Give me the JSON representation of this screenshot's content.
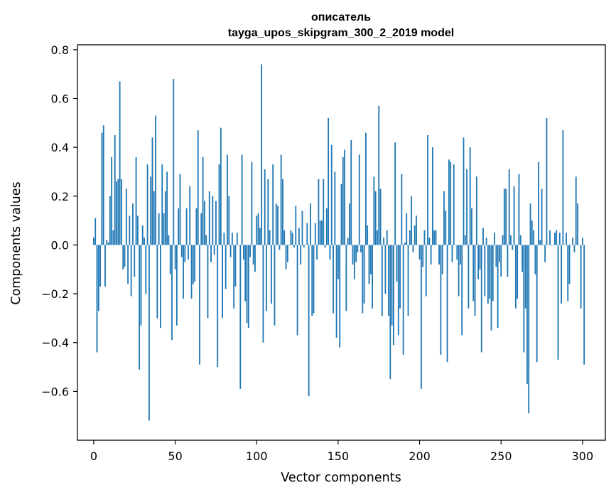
{
  "chart_data": {
    "type": "bar",
    "title_line1": "описатель",
    "title_line2": "tayga_upos_skipgram_300_2_2019 model",
    "xlabel": "Vector components",
    "ylabel": "Components values",
    "xlim": [
      -10,
      314
    ],
    "ylim": [
      -0.8,
      0.82
    ],
    "x_ticks": [
      0,
      50,
      100,
      150,
      200,
      250,
      300
    ],
    "y_ticks": [
      -0.6,
      -0.4,
      -0.2,
      0.0,
      0.2,
      0.4,
      0.6,
      0.8
    ],
    "y_tick_labels": [
      "−0.6",
      "−0.4",
      "−0.2",
      "0.0",
      "0.2",
      "0.4",
      "0.6",
      "0.8"
    ],
    "bar_color": "#1f77b4",
    "values": [
      0.03,
      0.11,
      -0.44,
      -0.27,
      -0.17,
      0.46,
      0.49,
      -0.17,
      0.02,
      0.01,
      0.2,
      0.36,
      0.06,
      0.45,
      0.26,
      0.27,
      0.67,
      0.27,
      -0.1,
      -0.09,
      0.23,
      -0.16,
      0.12,
      -0.21,
      0.17,
      -0.13,
      0.36,
      0.12,
      -0.51,
      -0.33,
      0.08,
      0.03,
      -0.2,
      0.33,
      -0.72,
      0.28,
      0.44,
      0.22,
      0.53,
      -0.3,
      0.13,
      -0.34,
      0.33,
      0.13,
      0.22,
      0.3,
      0.04,
      -0.12,
      -0.39,
      0.68,
      -0.1,
      -0.33,
      0.15,
      0.29,
      -0.05,
      -0.22,
      -0.07,
      0.15,
      -0.06,
      0.24,
      -0.22,
      -0.16,
      -0.15,
      0.15,
      0.47,
      -0.49,
      0.13,
      0.36,
      0.18,
      0.04,
      -0.3,
      0.22,
      -0.07,
      0.2,
      -0.04,
      0.18,
      -0.5,
      0.33,
      0.48,
      -0.3,
      0.05,
      -0.18,
      0.37,
      0.2,
      -0.05,
      0.05,
      -0.26,
      -0.17,
      0.05,
      0.0,
      -0.59,
      0.37,
      -0.06,
      -0.23,
      -0.32,
      -0.34,
      -0.05,
      0.34,
      -0.08,
      -0.11,
      0.12,
      0.13,
      0.07,
      0.74,
      -0.4,
      0.31,
      -0.27,
      0.27,
      0.06,
      -0.24,
      0.33,
      -0.33,
      0.17,
      0.16,
      -0.02,
      0.37,
      0.27,
      0.06,
      -0.1,
      -0.07,
      0.0,
      0.06,
      0.05,
      -0.01,
      0.16,
      -0.37,
      0.07,
      -0.08,
      0.14,
      -0.01,
      0.0,
      0.09,
      -0.62,
      0.17,
      -0.29,
      -0.28,
      0.09,
      -0.06,
      0.27,
      0.1,
      0.1,
      0.27,
      -0.01,
      0.15,
      0.52,
      -0.06,
      0.41,
      -0.28,
      0.3,
      -0.38,
      -0.14,
      -0.42,
      0.25,
      0.36,
      0.39,
      -0.27,
      0.03,
      0.17,
      0.43,
      -0.08,
      -0.14,
      -0.07,
      -0.03,
      0.37,
      -0.03,
      -0.28,
      -0.24,
      0.46,
      0.08,
      -0.16,
      -0.12,
      -0.26,
      0.28,
      0.22,
      0.06,
      0.57,
      0.23,
      -0.29,
      0.03,
      -0.2,
      0.06,
      -0.29,
      -0.55,
      -0.33,
      -0.41,
      0.42,
      -0.15,
      -0.37,
      -0.26,
      0.29,
      -0.45,
      0.01,
      0.13,
      -0.29,
      0.06,
      0.2,
      -0.03,
      0.08,
      0.12,
      0.0,
      -0.06,
      -0.59,
      -0.09,
      0.06,
      -0.21,
      0.45,
      0.03,
      -0.08,
      0.4,
      0.06,
      0.06,
      0.0,
      -0.08,
      -0.45,
      -0.12,
      0.22,
      0.14,
      -0.48,
      0.35,
      0.34,
      -0.07,
      0.33,
      0.0,
      -0.06,
      -0.21,
      -0.08,
      -0.37,
      0.44,
      0.04,
      0.31,
      -0.26,
      0.4,
      0.15,
      -0.23,
      -0.29,
      0.28,
      -0.14,
      -0.1,
      -0.44,
      0.07,
      -0.21,
      0.03,
      -0.24,
      -0.22,
      -0.35,
      -0.23,
      0.05,
      -0.09,
      -0.34,
      -0.07,
      -0.13,
      0.04,
      0.23,
      0.23,
      -0.13,
      0.31,
      0.04,
      -0.02,
      0.24,
      -0.26,
      -0.22,
      0.29,
      0.04,
      -0.11,
      -0.44,
      -0.26,
      -0.57,
      -0.69,
      0.17,
      0.1,
      0.06,
      -0.12,
      -0.48,
      0.34,
      0.02,
      0.23,
      0.0,
      -0.07,
      0.52,
      0.0,
      0.06,
      0.0,
      0.0,
      0.05,
      0.06,
      -0.47,
      0.05,
      -0.24,
      0.47,
      0.0,
      0.05,
      -0.23,
      -0.16,
      0.0,
      0.03,
      -0.03,
      0.28,
      0.17,
      0.0,
      -0.26,
      0.03,
      -0.49
    ]
  }
}
